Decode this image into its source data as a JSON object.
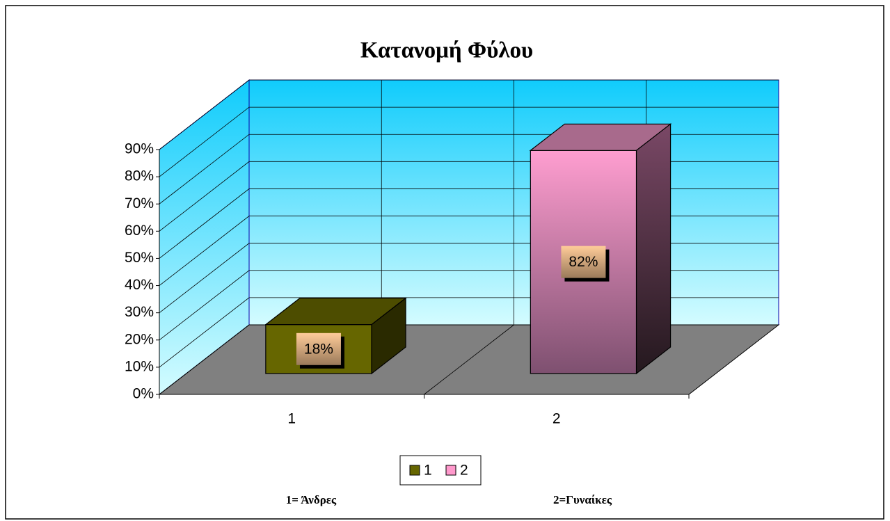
{
  "chart_data": {
    "type": "bar3d",
    "title": "Κατανομή Φύλου",
    "categories": [
      "1",
      "2"
    ],
    "values": [
      18,
      82
    ],
    "value_labels": [
      "18%",
      "82%"
    ],
    "colors": [
      "#666600",
      "#ff99cc"
    ],
    "ylim": [
      0,
      90
    ],
    "yticks": [
      {
        "value": 0,
        "label": "0%"
      },
      {
        "value": 10,
        "label": "10%"
      },
      {
        "value": 20,
        "label": "20%"
      },
      {
        "value": 30,
        "label": "30%"
      },
      {
        "value": 40,
        "label": "40%"
      },
      {
        "value": 50,
        "label": "50%"
      },
      {
        "value": 60,
        "label": "60%"
      },
      {
        "value": 70,
        "label": "70%"
      },
      {
        "value": 80,
        "label": "80%"
      },
      {
        "value": 90,
        "label": "90%"
      }
    ],
    "grid": true,
    "legend": "bottom",
    "annotations": [
      "1= Άνδρες",
      "2=Γυναίκες"
    ]
  }
}
